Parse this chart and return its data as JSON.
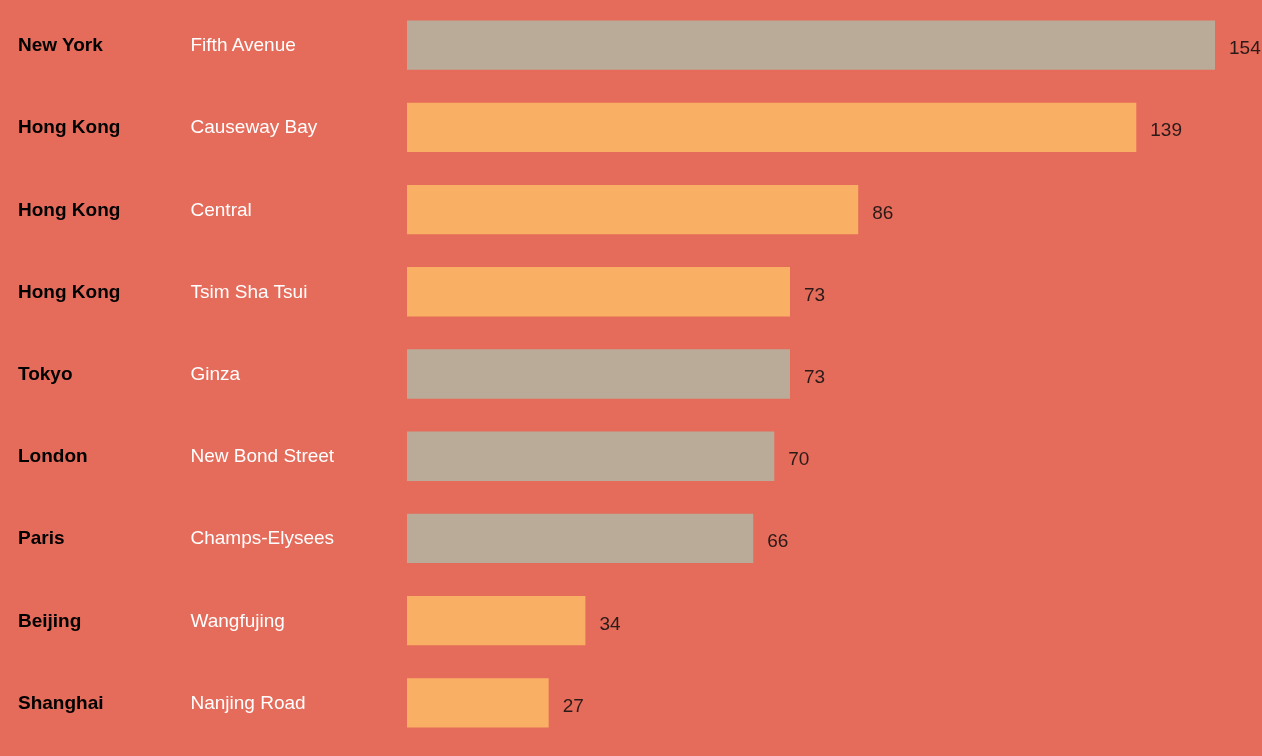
{
  "chart_data": {
    "type": "bar",
    "orientation": "horizontal",
    "data_labels": true,
    "categories": [
      "Fifth Avenue",
      "Causeway Bay",
      "Central",
      "Tsim Sha Tsui",
      "Ginza",
      "New Bond Street",
      "Champs-Elysees",
      "Wangfujing",
      "Nanjing Road"
    ],
    "values": [
      154,
      139,
      86,
      73,
      73,
      70,
      66,
      34,
      27
    ],
    "colors": [
      "#baab98",
      "#f9b064",
      "#f9b064",
      "#f9b064",
      "#baab98",
      "#baab98",
      "#baab98",
      "#f9b064",
      "#f9b064"
    ],
    "annotations": [
      "New York",
      "Hong Kong",
      "Hong Kong",
      "Hong Kong",
      "Tokyo",
      "London",
      "Paris",
      "Beijing",
      "Shanghai"
    ]
  }
}
